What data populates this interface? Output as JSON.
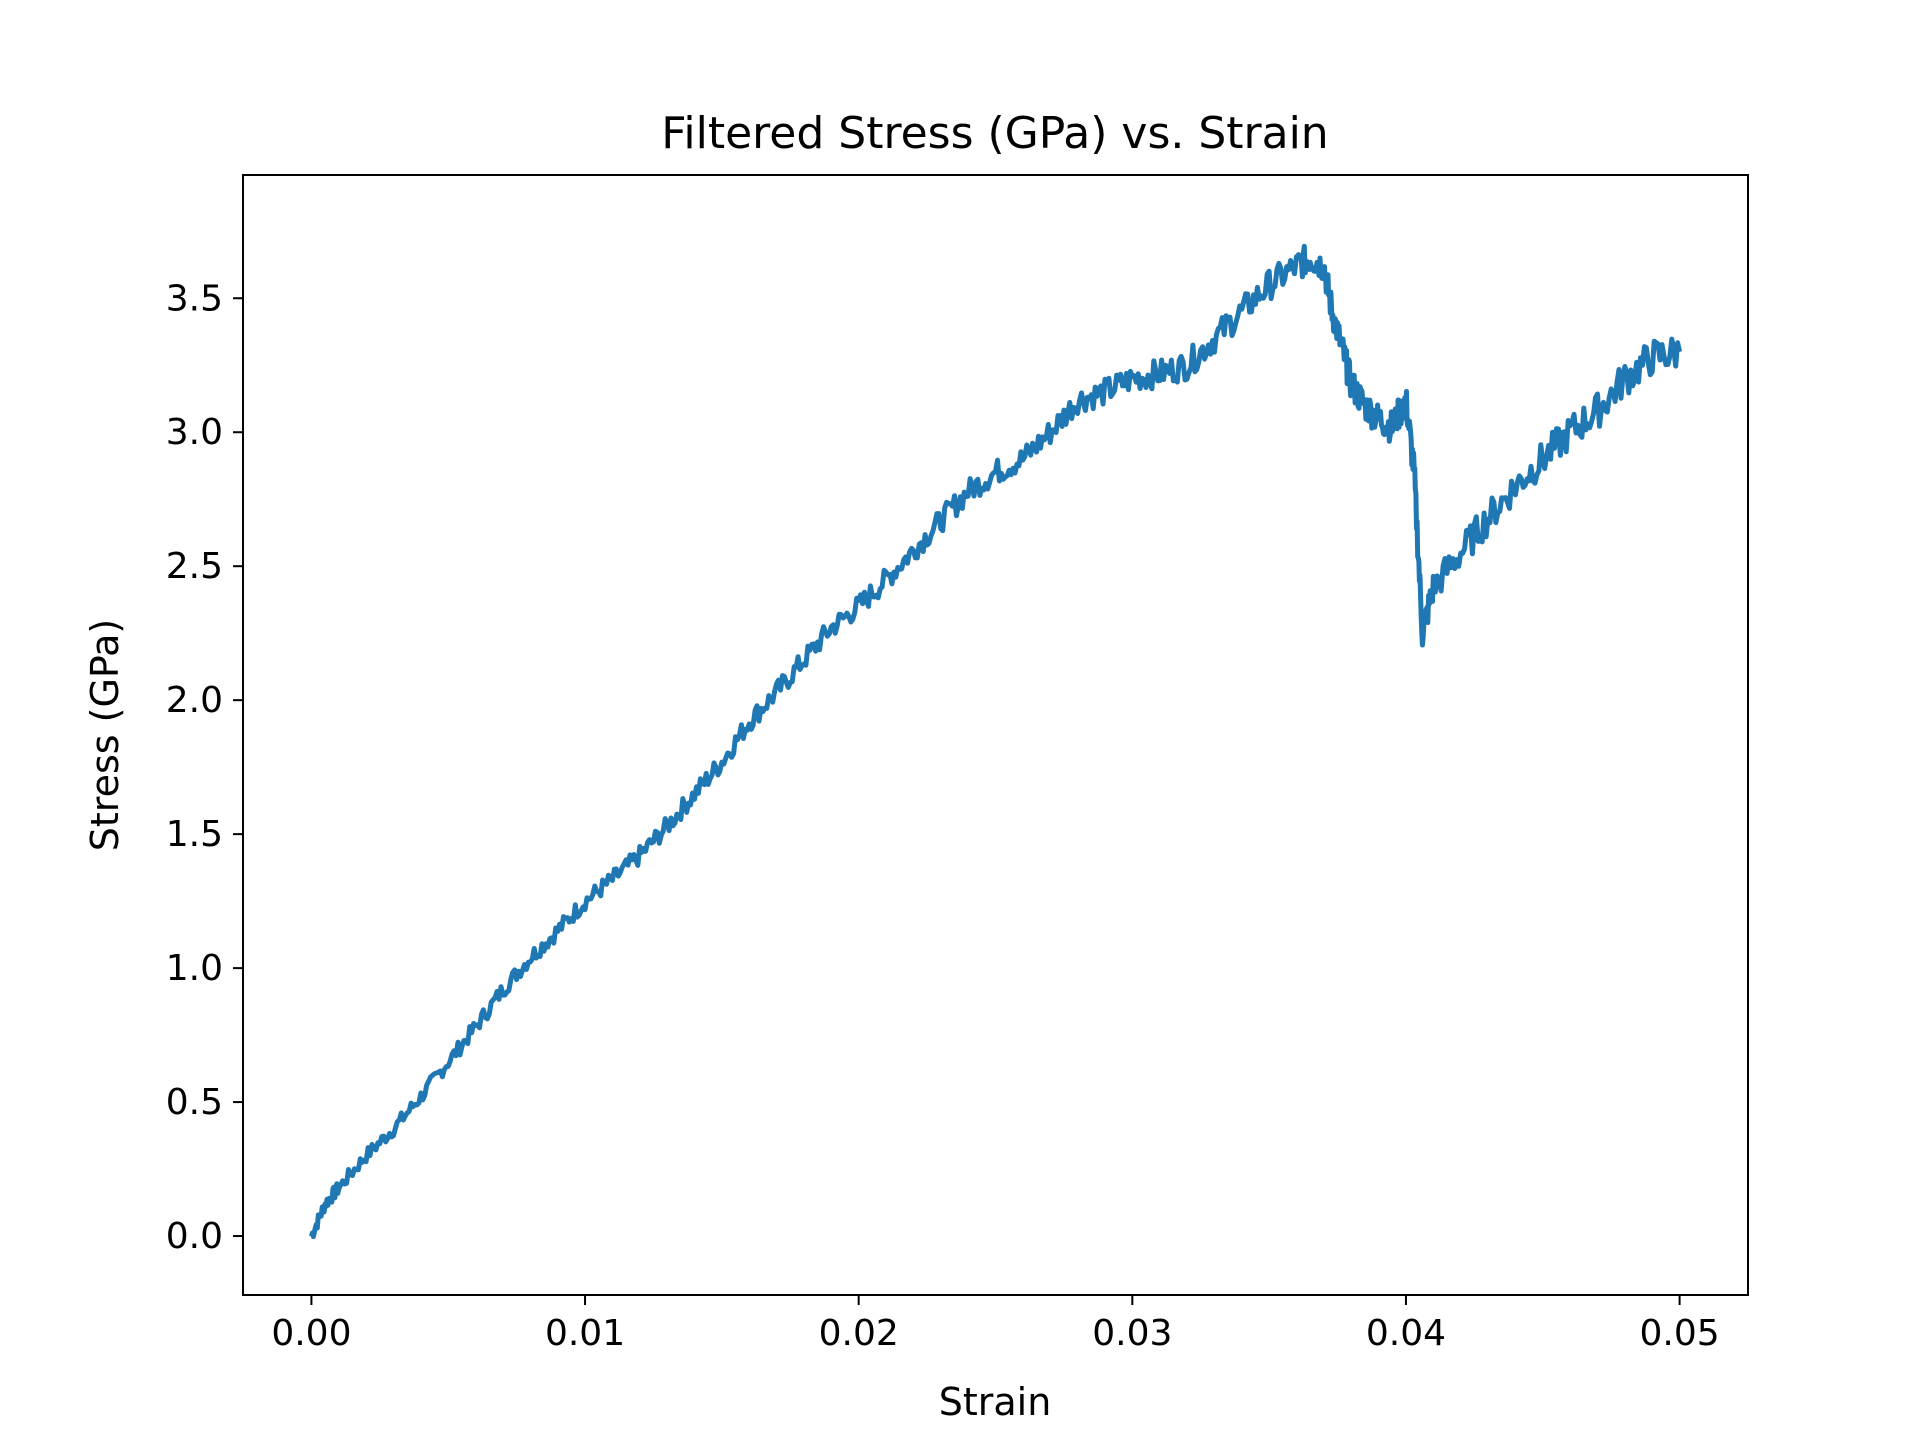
{
  "chart_data": {
    "type": "line",
    "title": "Filtered Stress (GPa) vs. Strain",
    "xlabel": "Strain",
    "ylabel": "Stress (GPa)",
    "xlim": [
      -0.0025,
      0.0525
    ],
    "ylim": [
      -0.22,
      3.96
    ],
    "x_ticks": [
      "0.00",
      "0.01",
      "0.02",
      "0.03",
      "0.04",
      "0.05"
    ],
    "y_ticks": [
      "0.0",
      "0.5",
      "1.0",
      "1.5",
      "2.0",
      "2.5",
      "3.0",
      "3.5"
    ],
    "grid": false,
    "line_color": "#1f77b4",
    "series": [
      {
        "x": [
          0.0,
          0.0005,
          0.001,
          0.002,
          0.003,
          0.004,
          0.005,
          0.006,
          0.007,
          0.008,
          0.009,
          0.01,
          0.011,
          0.012,
          0.013,
          0.014,
          0.015,
          0.016,
          0.017,
          0.018,
          0.019,
          0.02,
          0.021,
          0.022,
          0.023,
          0.024,
          0.025,
          0.026,
          0.027,
          0.028,
          0.029,
          0.03,
          0.031,
          0.032,
          0.033,
          0.034,
          0.035,
          0.036,
          0.0365,
          0.037,
          0.0373,
          0.0377,
          0.038,
          0.0385,
          0.039,
          0.0395,
          0.04,
          0.0403,
          0.0406,
          0.041,
          0.042,
          0.043,
          0.044,
          0.045,
          0.046,
          0.047,
          0.048,
          0.049,
          0.05
        ],
        "y": [
          0.0,
          0.12,
          0.18,
          0.3,
          0.4,
          0.52,
          0.65,
          0.78,
          0.92,
          1.04,
          1.14,
          1.25,
          1.33,
          1.42,
          1.53,
          1.65,
          1.77,
          1.92,
          2.03,
          2.15,
          2.27,
          2.35,
          2.45,
          2.56,
          2.67,
          2.78,
          2.85,
          2.9,
          3.0,
          3.12,
          3.15,
          3.2,
          3.22,
          3.25,
          3.35,
          3.45,
          3.55,
          3.62,
          3.65,
          3.62,
          3.45,
          3.3,
          3.18,
          3.1,
          3.05,
          3.02,
          3.12,
          2.85,
          2.25,
          2.42,
          2.55,
          2.68,
          2.8,
          2.9,
          3.0,
          3.08,
          3.2,
          3.28,
          3.3
        ]
      }
    ]
  }
}
